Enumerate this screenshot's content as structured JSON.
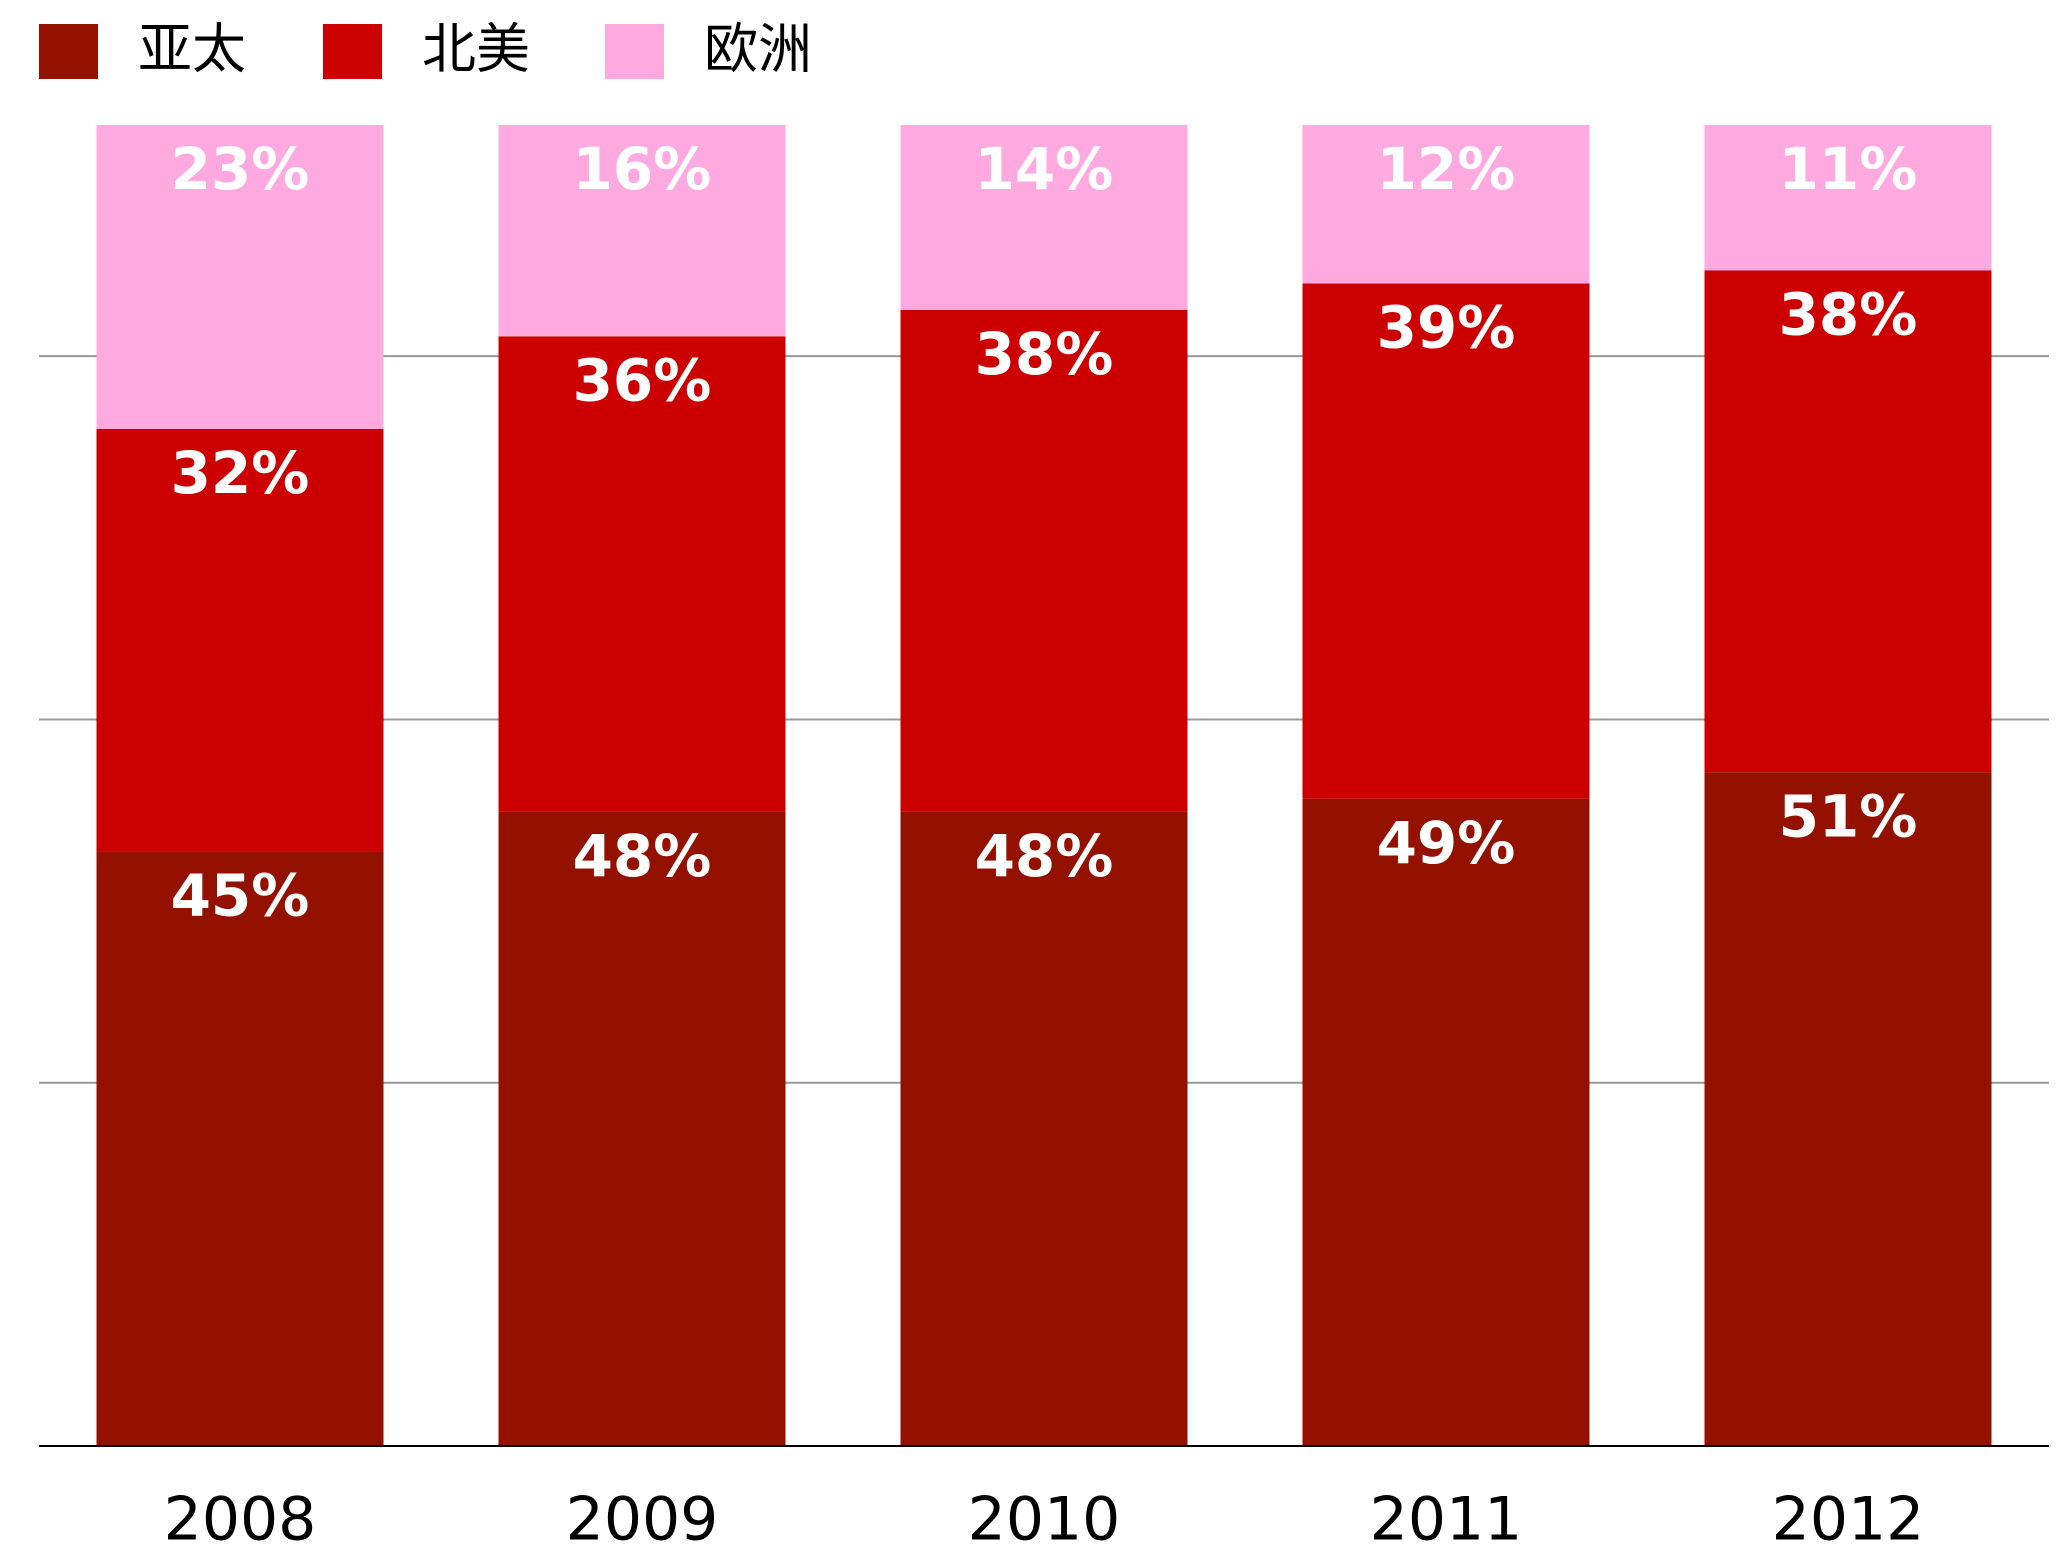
{
  "chart_data": {
    "type": "stacked_bar",
    "categories": [
      "2008",
      "2009",
      "2010",
      "2011",
      "2012"
    ],
    "series": [
      {
        "name": "亚太",
        "color": "#941100",
        "values": [
          45,
          48,
          48,
          49,
          51
        ],
        "value_labels": [
          "45%",
          "48%",
          "48%",
          "49%",
          "51%"
        ]
      },
      {
        "name": "北美",
        "color": "#cc0000",
        "values": [
          32,
          36,
          38,
          39,
          38
        ],
        "value_labels": [
          "32%",
          "36%",
          "38%",
          "39%",
          "38%"
        ]
      },
      {
        "name": "欧洲",
        "color": "#ffa9e1",
        "values": [
          23,
          16,
          14,
          12,
          11
        ],
        "value_labels": [
          "23%",
          "16%",
          "14%",
          "12%",
          "11%"
        ]
      }
    ],
    "ylim": [
      0,
      100
    ],
    "yticks": [
      0,
      27.5,
      55,
      82.5
    ],
    "grid": true,
    "legend": "top-left"
  }
}
